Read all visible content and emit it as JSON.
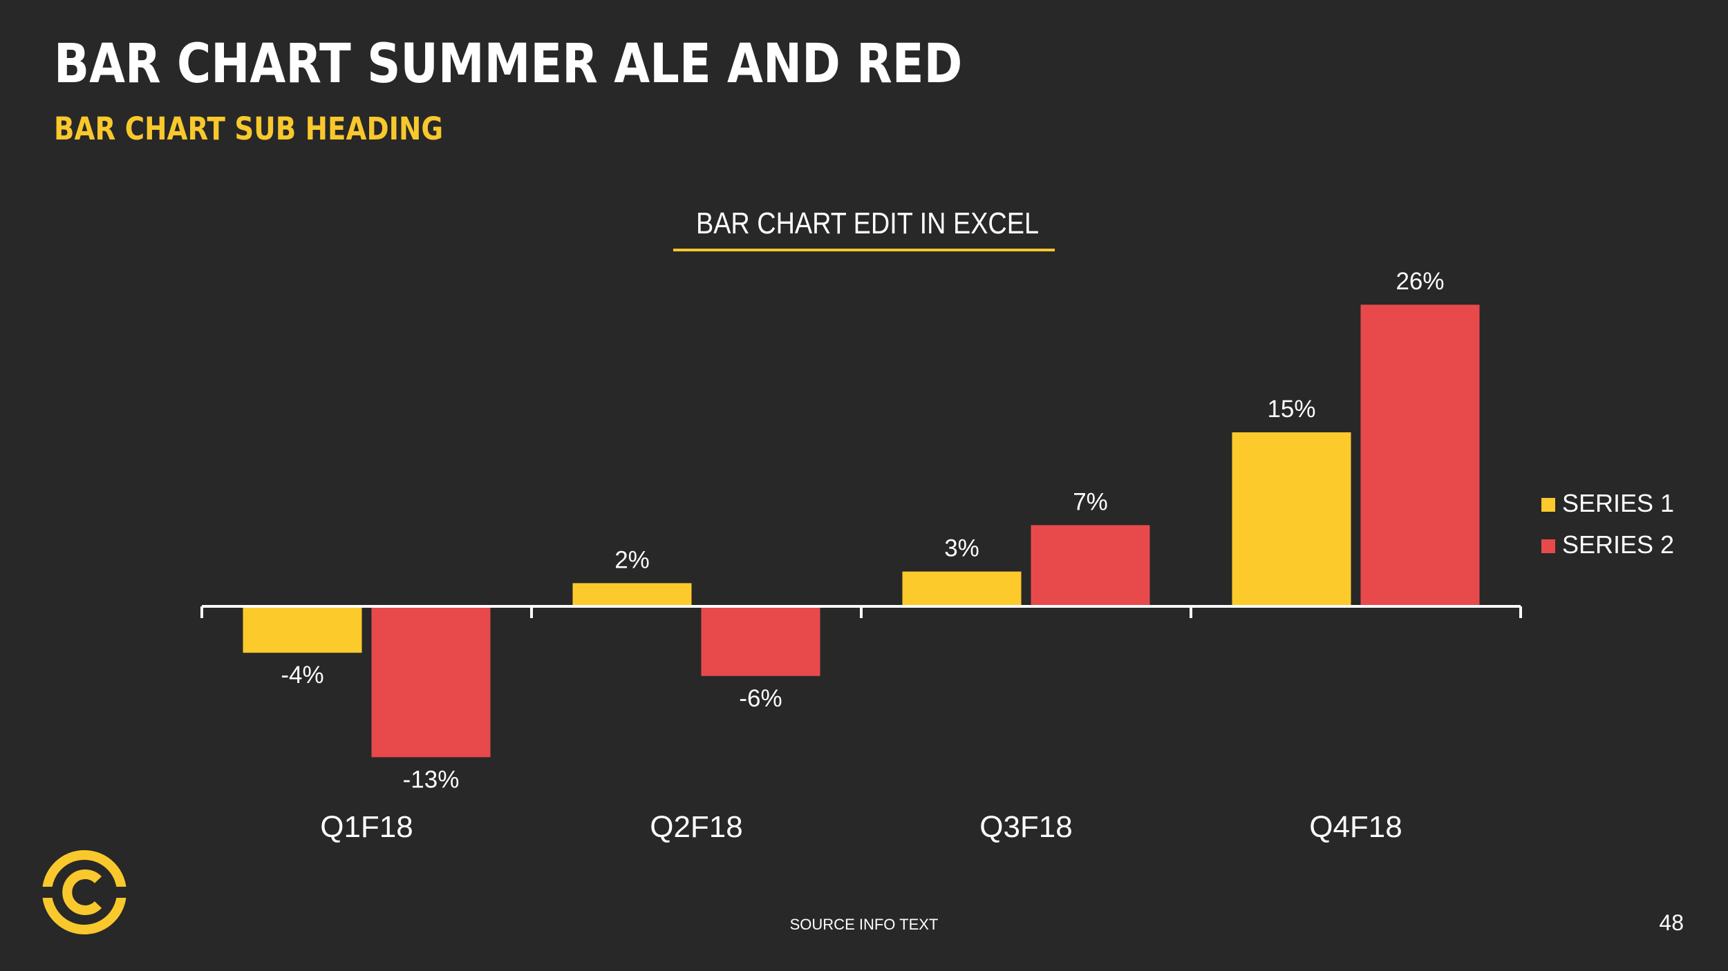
{
  "slide": {
    "title": "BAR CHART SUMMER ALE AND RED",
    "subtitle": "BAR CHART SUB HEADING",
    "source": "SOURCE INFO TEXT",
    "page_number": "48",
    "logo_icon": "comedy-central-c-logo-icon"
  },
  "colors": {
    "background": "#282828",
    "accent_yellow": "#f9c82d",
    "series1": "#fdca2c",
    "series2": "#e84a4c",
    "axis": "#ffffff",
    "text": "#ffffff"
  },
  "chart_data": {
    "type": "bar",
    "title": "BAR CHART EDIT IN EXCEL",
    "categories": [
      "Q1F18",
      "Q2F18",
      "Q3F18",
      "Q4F18"
    ],
    "series": [
      {
        "name": "SERIES 1",
        "values": [
          -4,
          2,
          3,
          15
        ],
        "labels": [
          "-4%",
          "2%",
          "3%",
          "15%"
        ],
        "color": "#fdca2c"
      },
      {
        "name": "SERIES 2",
        "values": [
          -13,
          -6,
          7,
          26
        ],
        "labels": [
          "-13%",
          "-6%",
          "7%",
          "26%"
        ],
        "color": "#e84a4c"
      }
    ],
    "unit": "%",
    "ylim": [
      -15,
      28
    ],
    "grid": false,
    "legend": "right"
  }
}
